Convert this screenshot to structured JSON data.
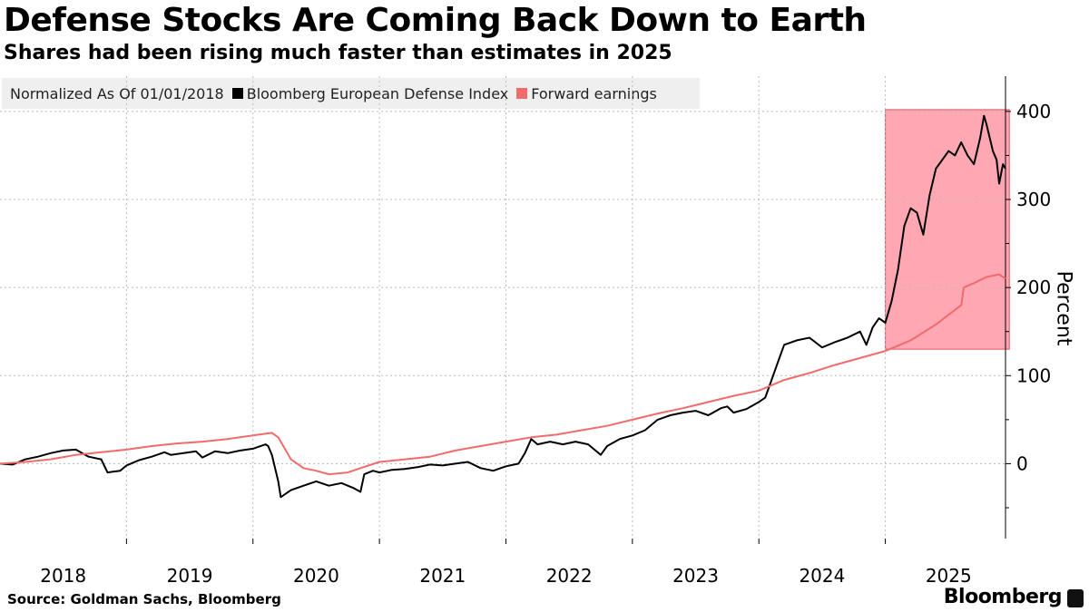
{
  "chart_data": {
    "type": "line",
    "title": "Defense Stocks Are Coming Back Down to Earth",
    "subtitle": "Shares had been rising much faster than estimates in 2025",
    "legend_note": "Normalized As Of 01/01/2018",
    "ylabel": "Percent",
    "xlabel": "",
    "ylim": [
      -85,
      440
    ],
    "xlim": [
      2018.0,
      2025.95
    ],
    "yticks": [
      0,
      100,
      200,
      300,
      400
    ],
    "xtick_labels": [
      "2018",
      "2019",
      "2020",
      "2021",
      "2022",
      "2023",
      "2024",
      "2025"
    ],
    "highlight_region": {
      "x": [
        2025.0,
        2025.98
      ],
      "y": [
        130,
        402
      ]
    },
    "series": [
      {
        "name": "Bloomberg European Defense Index",
        "color": "#000000",
        "points": [
          [
            2018.0,
            0
          ],
          [
            2018.1,
            -1
          ],
          [
            2018.2,
            5
          ],
          [
            2018.3,
            8
          ],
          [
            2018.4,
            12
          ],
          [
            2018.5,
            15
          ],
          [
            2018.6,
            16
          ],
          [
            2018.7,
            8
          ],
          [
            2018.8,
            5
          ],
          [
            2018.85,
            -10
          ],
          [
            2018.95,
            -8
          ],
          [
            2019.0,
            -2
          ],
          [
            2019.1,
            4
          ],
          [
            2019.2,
            8
          ],
          [
            2019.3,
            13
          ],
          [
            2019.35,
            10
          ],
          [
            2019.45,
            12
          ],
          [
            2019.55,
            14
          ],
          [
            2019.6,
            7
          ],
          [
            2019.7,
            14
          ],
          [
            2019.8,
            12
          ],
          [
            2019.9,
            15
          ],
          [
            2020.0,
            17
          ],
          [
            2020.1,
            22
          ],
          [
            2020.12,
            20
          ],
          [
            2020.15,
            10
          ],
          [
            2020.2,
            -20
          ],
          [
            2020.22,
            -38
          ],
          [
            2020.3,
            -30
          ],
          [
            2020.4,
            -25
          ],
          [
            2020.5,
            -20
          ],
          [
            2020.6,
            -25
          ],
          [
            2020.7,
            -22
          ],
          [
            2020.8,
            -28
          ],
          [
            2020.85,
            -32
          ],
          [
            2020.88,
            -12
          ],
          [
            2020.95,
            -8
          ],
          [
            2021.0,
            -10
          ],
          [
            2021.1,
            -7
          ],
          [
            2021.2,
            -6
          ],
          [
            2021.3,
            -4
          ],
          [
            2021.4,
            -1
          ],
          [
            2021.5,
            -2
          ],
          [
            2021.6,
            0
          ],
          [
            2021.7,
            2
          ],
          [
            2021.8,
            -5
          ],
          [
            2021.9,
            -8
          ],
          [
            2022.0,
            -3
          ],
          [
            2022.1,
            0
          ],
          [
            2022.15,
            12
          ],
          [
            2022.2,
            28
          ],
          [
            2022.25,
            22
          ],
          [
            2022.35,
            25
          ],
          [
            2022.45,
            22
          ],
          [
            2022.55,
            25
          ],
          [
            2022.65,
            22
          ],
          [
            2022.75,
            10
          ],
          [
            2022.8,
            20
          ],
          [
            2022.9,
            28
          ],
          [
            2023.0,
            32
          ],
          [
            2023.1,
            38
          ],
          [
            2023.2,
            50
          ],
          [
            2023.3,
            55
          ],
          [
            2023.4,
            58
          ],
          [
            2023.5,
            60
          ],
          [
            2023.6,
            55
          ],
          [
            2023.7,
            63
          ],
          [
            2023.75,
            65
          ],
          [
            2023.8,
            58
          ],
          [
            2023.9,
            62
          ],
          [
            2024.0,
            70
          ],
          [
            2024.05,
            75
          ],
          [
            2024.1,
            95
          ],
          [
            2024.15,
            115
          ],
          [
            2024.2,
            135
          ],
          [
            2024.3,
            140
          ],
          [
            2024.4,
            143
          ],
          [
            2024.5,
            132
          ],
          [
            2024.6,
            138
          ],
          [
            2024.7,
            143
          ],
          [
            2024.8,
            150
          ],
          [
            2024.85,
            135
          ],
          [
            2024.9,
            155
          ],
          [
            2024.95,
            165
          ],
          [
            2025.0,
            160
          ],
          [
            2025.05,
            185
          ],
          [
            2025.1,
            220
          ],
          [
            2025.15,
            270
          ],
          [
            2025.2,
            290
          ],
          [
            2025.25,
            285
          ],
          [
            2025.3,
            260
          ],
          [
            2025.35,
            305
          ],
          [
            2025.4,
            335
          ],
          [
            2025.45,
            345
          ],
          [
            2025.5,
            355
          ],
          [
            2025.55,
            350
          ],
          [
            2025.6,
            365
          ],
          [
            2025.65,
            350
          ],
          [
            2025.7,
            340
          ],
          [
            2025.75,
            370
          ],
          [
            2025.78,
            395
          ],
          [
            2025.8,
            385
          ],
          [
            2025.85,
            355
          ],
          [
            2025.88,
            345
          ],
          [
            2025.9,
            318
          ],
          [
            2025.93,
            340
          ],
          [
            2025.95,
            335
          ]
        ]
      },
      {
        "name": "Forward earnings",
        "color": "#f26b6b",
        "points": [
          [
            2018.0,
            0
          ],
          [
            2018.2,
            2
          ],
          [
            2018.4,
            5
          ],
          [
            2018.6,
            10
          ],
          [
            2018.8,
            13
          ],
          [
            2019.0,
            16
          ],
          [
            2019.2,
            20
          ],
          [
            2019.4,
            23
          ],
          [
            2019.6,
            25
          ],
          [
            2019.8,
            28
          ],
          [
            2020.0,
            32
          ],
          [
            2020.15,
            35
          ],
          [
            2020.2,
            30
          ],
          [
            2020.3,
            5
          ],
          [
            2020.4,
            -5
          ],
          [
            2020.5,
            -8
          ],
          [
            2020.6,
            -12
          ],
          [
            2020.75,
            -10
          ],
          [
            2020.85,
            -5
          ],
          [
            2021.0,
            2
          ],
          [
            2021.2,
            5
          ],
          [
            2021.4,
            8
          ],
          [
            2021.6,
            15
          ],
          [
            2021.8,
            20
          ],
          [
            2022.0,
            25
          ],
          [
            2022.2,
            30
          ],
          [
            2022.4,
            33
          ],
          [
            2022.6,
            38
          ],
          [
            2022.8,
            43
          ],
          [
            2023.0,
            50
          ],
          [
            2023.2,
            57
          ],
          [
            2023.4,
            63
          ],
          [
            2023.6,
            70
          ],
          [
            2023.8,
            77
          ],
          [
            2024.0,
            83
          ],
          [
            2024.2,
            95
          ],
          [
            2024.4,
            103
          ],
          [
            2024.6,
            112
          ],
          [
            2024.8,
            120
          ],
          [
            2025.0,
            128
          ],
          [
            2025.2,
            140
          ],
          [
            2025.4,
            158
          ],
          [
            2025.6,
            180
          ],
          [
            2025.62,
            200
          ],
          [
            2025.7,
            205
          ],
          [
            2025.8,
            212
          ],
          [
            2025.9,
            215
          ],
          [
            2025.93,
            212
          ],
          [
            2025.95,
            210
          ]
        ]
      }
    ]
  },
  "footer": {
    "source": "Source: Goldman Sachs, Bloomberg",
    "brand": "Bloomberg"
  }
}
